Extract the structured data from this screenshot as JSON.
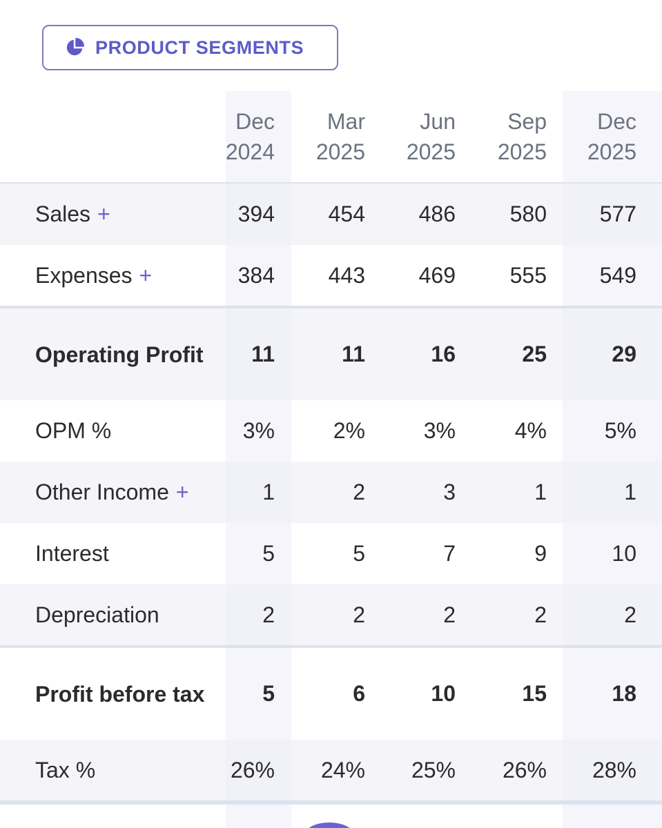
{
  "segment_button": {
    "label": "PRODUCT SEGMENTS",
    "icon": "pie-chart-icon",
    "color": "#5f5ac8"
  },
  "periods": [
    {
      "month": "Dec",
      "year": "2024"
    },
    {
      "month": "Mar",
      "year": "2025"
    },
    {
      "month": "Jun",
      "year": "2025"
    },
    {
      "month": "Sep",
      "year": "2025"
    },
    {
      "month": "Dec",
      "year": "2025"
    }
  ],
  "rows": [
    {
      "label": "Sales",
      "expandable": true,
      "bold": false,
      "values": [
        "394",
        "454",
        "486",
        "580",
        "577"
      ]
    },
    {
      "label": "Expenses",
      "expandable": true,
      "bold": false,
      "values": [
        "384",
        "443",
        "469",
        "555",
        "549"
      ]
    },
    {
      "label": "Operating Profit",
      "expandable": false,
      "bold": true,
      "values": [
        "11",
        "11",
        "16",
        "25",
        "29"
      ]
    },
    {
      "label": "OPM %",
      "expandable": false,
      "bold": false,
      "values": [
        "3%",
        "2%",
        "3%",
        "4%",
        "5%"
      ]
    },
    {
      "label": "Other Income",
      "expandable": true,
      "bold": false,
      "values": [
        "1",
        "2",
        "3",
        "1",
        "1"
      ]
    },
    {
      "label": "Interest",
      "expandable": false,
      "bold": false,
      "values": [
        "5",
        "5",
        "7",
        "9",
        "10"
      ]
    },
    {
      "label": "Depreciation",
      "expandable": false,
      "bold": false,
      "values": [
        "2",
        "2",
        "2",
        "2",
        "2"
      ]
    },
    {
      "label": "Profit before tax",
      "expandable": false,
      "bold": true,
      "values": [
        "5",
        "6",
        "10",
        "15",
        "18"
      ]
    },
    {
      "label": "Tax %",
      "expandable": false,
      "bold": false,
      "values": [
        "26%",
        "24%",
        "25%",
        "26%",
        "28%"
      ]
    }
  ],
  "plus_symbol": "+"
}
